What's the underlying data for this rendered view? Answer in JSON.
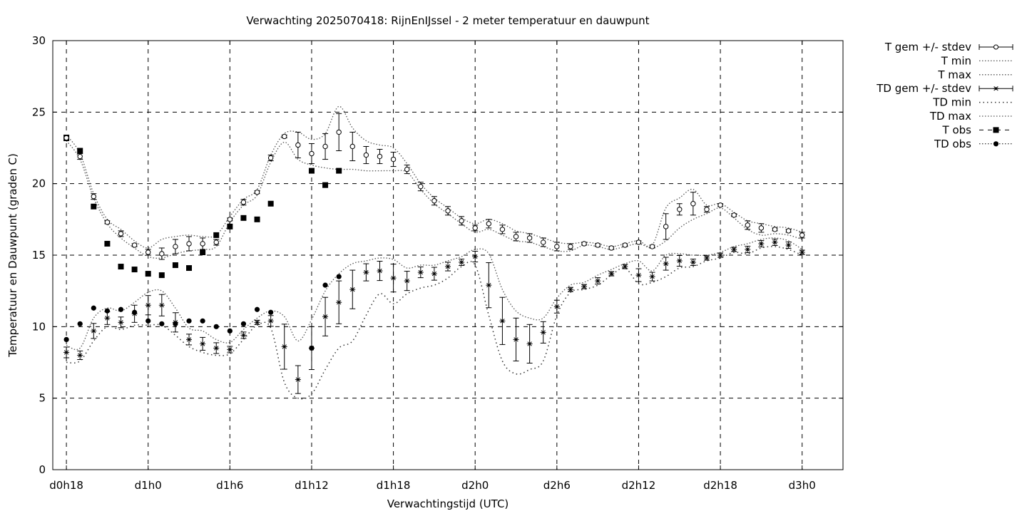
{
  "chart_data": {
    "type": "line",
    "title": "Verwachting 2025070418: RijnEnIJssel - 2 meter temperatuur en dauwpunt",
    "xlabel": "Verwachtingstijd (UTC)",
    "ylabel": "Temperatuur en Dauwpunt (graden C)",
    "xlim": [
      -1,
      57
    ],
    "ylim": [
      0,
      30
    ],
    "x_ticks": [
      {
        "value": 0,
        "label": "d0h18"
      },
      {
        "value": 6,
        "label": "d1h0"
      },
      {
        "value": 12,
        "label": "d1h6"
      },
      {
        "value": 18,
        "label": "d1h12"
      },
      {
        "value": 24,
        "label": "d1h18"
      },
      {
        "value": 30,
        "label": "d2h0"
      },
      {
        "value": 36,
        "label": "d2h6"
      },
      {
        "value": 42,
        "label": "d2h12"
      },
      {
        "value": 48,
        "label": "d2h18"
      },
      {
        "value": 54,
        "label": "d3h0"
      }
    ],
    "y_ticks": [
      0,
      5,
      10,
      15,
      20,
      25,
      30
    ],
    "grid": true,
    "legend_position": "outside-right",
    "legend": [
      {
        "label": "T gem +/- stdev",
        "style": "errorbar-open-circle"
      },
      {
        "label": "T min",
        "style": "dotted"
      },
      {
        "label": "T max",
        "style": "dotted"
      },
      {
        "label": "TD gem +/- stdev",
        "style": "errorbar-star"
      },
      {
        "label": "TD min",
        "style": "dotted-sparse"
      },
      {
        "label": "TD max",
        "style": "dotted"
      },
      {
        "label": "T obs",
        "style": "dashed-filled-square"
      },
      {
        "label": "TD obs",
        "style": "dotted-filled-circle"
      }
    ],
    "x": [
      0,
      1,
      2,
      3,
      4,
      5,
      6,
      7,
      8,
      9,
      10,
      11,
      12,
      13,
      14,
      15,
      16,
      17,
      18,
      19,
      20,
      21,
      22,
      23,
      24,
      25,
      26,
      27,
      28,
      29,
      30,
      31,
      32,
      33,
      34,
      35,
      36,
      37,
      38,
      39,
      40,
      41,
      42,
      43,
      44,
      45,
      46,
      47,
      48,
      49,
      50,
      51,
      52,
      53,
      54
    ],
    "series": [
      {
        "name": "T gem +/- stdev",
        "values": [
          23.2,
          21.9,
          19.1,
          17.3,
          16.5,
          15.7,
          15.2,
          15.1,
          15.6,
          15.8,
          15.8,
          15.9,
          17.5,
          18.7,
          19.4,
          21.8,
          23.3,
          22.7,
          22.1,
          22.6,
          23.6,
          22.6,
          22.0,
          21.9,
          21.7,
          21.0,
          19.8,
          18.8,
          18.1,
          17.4,
          16.9,
          17.2,
          16.8,
          16.3,
          16.2,
          15.9,
          15.6,
          15.6,
          15.8,
          15.7,
          15.5,
          15.7,
          15.9,
          15.6,
          17.0,
          18.2,
          18.6,
          18.2,
          18.5,
          17.8,
          17.1,
          16.9,
          16.8,
          16.7,
          16.4
        ],
        "stdev": [
          0.2,
          0.2,
          0.2,
          0.1,
          0.2,
          0.1,
          0.2,
          0.4,
          0.5,
          0.5,
          0.4,
          0.2,
          0.1,
          0.2,
          0.1,
          0.2,
          0.1,
          0.9,
          0.7,
          0.9,
          1.3,
          1.0,
          0.6,
          0.5,
          0.5,
          0.3,
          0.3,
          0.3,
          0.3,
          0.3,
          0.2,
          0.3,
          0.3,
          0.3,
          0.3,
          0.3,
          0.3,
          0.2,
          0.1,
          0.1,
          0.1,
          0.1,
          0.1,
          0.1,
          0.9,
          0.4,
          0.8,
          0.2,
          0.1,
          0.1,
          0.3,
          0.3,
          0.1,
          0.1,
          0.2
        ]
      },
      {
        "name": "T min",
        "values": [
          23.0,
          21.7,
          19.0,
          17.2,
          16.2,
          15.5,
          14.9,
          14.8,
          15.1,
          15.3,
          15.4,
          15.6,
          17.3,
          18.5,
          19.2,
          21.5,
          22.9,
          21.7,
          21.3,
          21.1,
          21.0,
          21.0,
          20.9,
          20.9,
          20.9,
          20.8,
          19.6,
          18.6,
          17.9,
          17.2,
          16.6,
          16.8,
          16.4,
          16.0,
          15.9,
          15.6,
          15.3,
          15.3,
          15.7,
          15.6,
          15.4,
          15.6,
          15.8,
          15.5,
          16.0,
          16.9,
          17.5,
          17.9,
          18.3,
          17.6,
          16.8,
          16.4,
          16.5,
          16.4,
          16.1
        ]
      },
      {
        "name": "T max",
        "values": [
          23.4,
          22.1,
          19.3,
          17.5,
          16.8,
          16.0,
          15.5,
          16.1,
          16.3,
          16.4,
          16.3,
          16.4,
          17.7,
          18.9,
          19.6,
          22.0,
          23.5,
          23.6,
          23.1,
          23.5,
          25.4,
          23.9,
          23.0,
          22.7,
          22.5,
          21.4,
          20.0,
          19.0,
          18.3,
          17.6,
          17.2,
          17.5,
          17.2,
          16.7,
          16.5,
          16.2,
          15.9,
          15.8,
          15.9,
          15.8,
          15.6,
          15.8,
          16.0,
          15.7,
          18.3,
          19.0,
          19.6,
          18.5,
          18.6,
          18.0,
          17.4,
          17.2,
          17.0,
          16.9,
          16.6
        ]
      },
      {
        "name": "TD gem +/- stdev",
        "values": [
          8.2,
          8.0,
          9.7,
          10.6,
          10.3,
          10.9,
          11.5,
          11.5,
          10.3,
          9.1,
          8.8,
          8.5,
          8.4,
          9.4,
          10.3,
          10.4,
          8.6,
          6.3,
          8.5,
          10.7,
          11.7,
          12.6,
          13.8,
          13.9,
          13.4,
          13.2,
          13.8,
          13.7,
          14.2,
          14.5,
          14.9,
          12.9,
          10.4,
          9.1,
          8.8,
          9.6,
          11.4,
          12.6,
          12.8,
          13.2,
          13.7,
          14.2,
          13.6,
          13.5,
          14.4,
          14.6,
          14.5,
          14.8,
          15.0,
          15.4,
          15.4,
          15.8,
          15.9,
          15.7,
          15.2
        ]
      },
      {
        "name": "TD min",
        "values": [
          7.5,
          7.6,
          9.0,
          10.0,
          9.8,
          10.1,
          10.1,
          10.1,
          9.4,
          8.6,
          8.2,
          8.0,
          8.1,
          9.1,
          10.1,
          9.9,
          6.1,
          5.0,
          5.3,
          7.0,
          8.5,
          9.0,
          10.8,
          12.3,
          11.6,
          12.3,
          12.7,
          12.9,
          13.4,
          14.2,
          14.3,
          10.8,
          7.6,
          6.7,
          7.0,
          7.6,
          10.8,
          12.4,
          12.6,
          12.9,
          13.6,
          14.1,
          13.0,
          13.1,
          13.5,
          14.1,
          14.2,
          14.6,
          14.8,
          15.2,
          15.1,
          15.5,
          15.6,
          15.4,
          15.0
        ]
      },
      {
        "name": "TD max",
        "values": [
          8.7,
          8.5,
          10.6,
          11.3,
          11.1,
          11.7,
          12.4,
          12.5,
          11.3,
          9.9,
          9.7,
          9.1,
          8.9,
          9.8,
          10.6,
          11.1,
          10.7,
          9.0,
          10.5,
          12.5,
          13.7,
          14.4,
          14.6,
          14.8,
          14.7,
          14.1,
          14.3,
          14.3,
          14.6,
          14.9,
          15.4,
          15.1,
          12.6,
          11.1,
          10.6,
          10.6,
          12.0,
          12.9,
          13.1,
          13.6,
          14.0,
          14.4,
          14.6,
          13.9,
          15.0,
          15.1,
          15.0,
          15.0,
          15.2,
          15.6,
          15.8,
          16.1,
          16.2,
          16.0,
          15.4
        ]
      },
      {
        "name": "T obs",
        "x": [
          0,
          1,
          2,
          3,
          4,
          5,
          6,
          7,
          8,
          9,
          10,
          11,
          12,
          13,
          14,
          15,
          18,
          19,
          20
        ],
        "values": [
          23.2,
          22.3,
          18.4,
          15.8,
          14.2,
          14.0,
          13.7,
          13.6,
          14.3,
          14.1,
          15.2,
          16.4,
          17.0,
          17.6,
          17.5,
          18.6,
          20.9,
          19.9,
          20.9
        ]
      },
      {
        "name": "TD obs",
        "x": [
          0,
          1,
          2,
          3,
          4,
          5,
          6,
          7,
          8,
          9,
          10,
          11,
          12,
          13,
          14,
          15,
          18,
          19,
          20
        ],
        "values": [
          9.1,
          10.2,
          11.3,
          11.1,
          11.2,
          11.0,
          10.4,
          10.2,
          10.2,
          10.4,
          10.4,
          10.0,
          9.7,
          10.2,
          11.2,
          11.0,
          8.5,
          12.9,
          13.5
        ]
      }
    ]
  }
}
